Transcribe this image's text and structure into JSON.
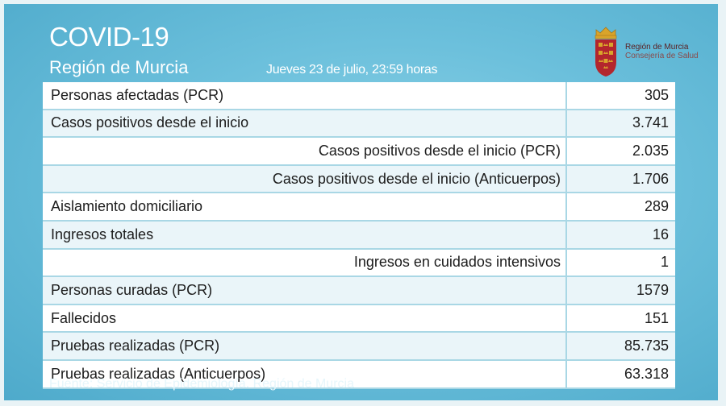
{
  "header": {
    "title": "COVID-19",
    "subtitle": "Región de Murcia",
    "date": "Jueves 23 de julio, 23:59 horas"
  },
  "logo": {
    "line1": "Región de Murcia",
    "line2": "Consejería de Salud"
  },
  "table": {
    "rows": [
      {
        "label": "Personas afectadas (PCR)",
        "value": "305",
        "indent": false
      },
      {
        "label": "Casos positivos desde el inicio",
        "value": "3.741",
        "indent": false
      },
      {
        "label": "Casos positivos desde el inicio (PCR)",
        "value": "2.035",
        "indent": true
      },
      {
        "label": "Casos positivos desde el inicio (Anticuerpos)",
        "value": "1.706",
        "indent": true
      },
      {
        "label": "Aislamiento domiciliario",
        "value": "289",
        "indent": false
      },
      {
        "label": "Ingresos totales",
        "value": "16",
        "indent": false
      },
      {
        "label": "Ingresos en cuidados intensivos",
        "value": "1",
        "indent": true
      },
      {
        "label": "Personas curadas (PCR)",
        "value": "1579",
        "indent": false
      },
      {
        "label": "Fallecidos",
        "value": "151",
        "indent": false
      },
      {
        "label": "Pruebas realizadas (PCR)",
        "value": "85.735",
        "indent": false
      },
      {
        "label": "Pruebas realizadas (Anticuerpos)",
        "value": "63.318",
        "indent": false
      }
    ]
  },
  "footer": {
    "source": "Fuente: Servicio de Epidemiología. Región de Murcia"
  },
  "colors": {
    "background": "#6cc0dc",
    "row_white": "#ffffff",
    "row_tint": "#eaf5f9",
    "shield_red": "#b3262d",
    "crown_gold": "#d9a42b"
  }
}
